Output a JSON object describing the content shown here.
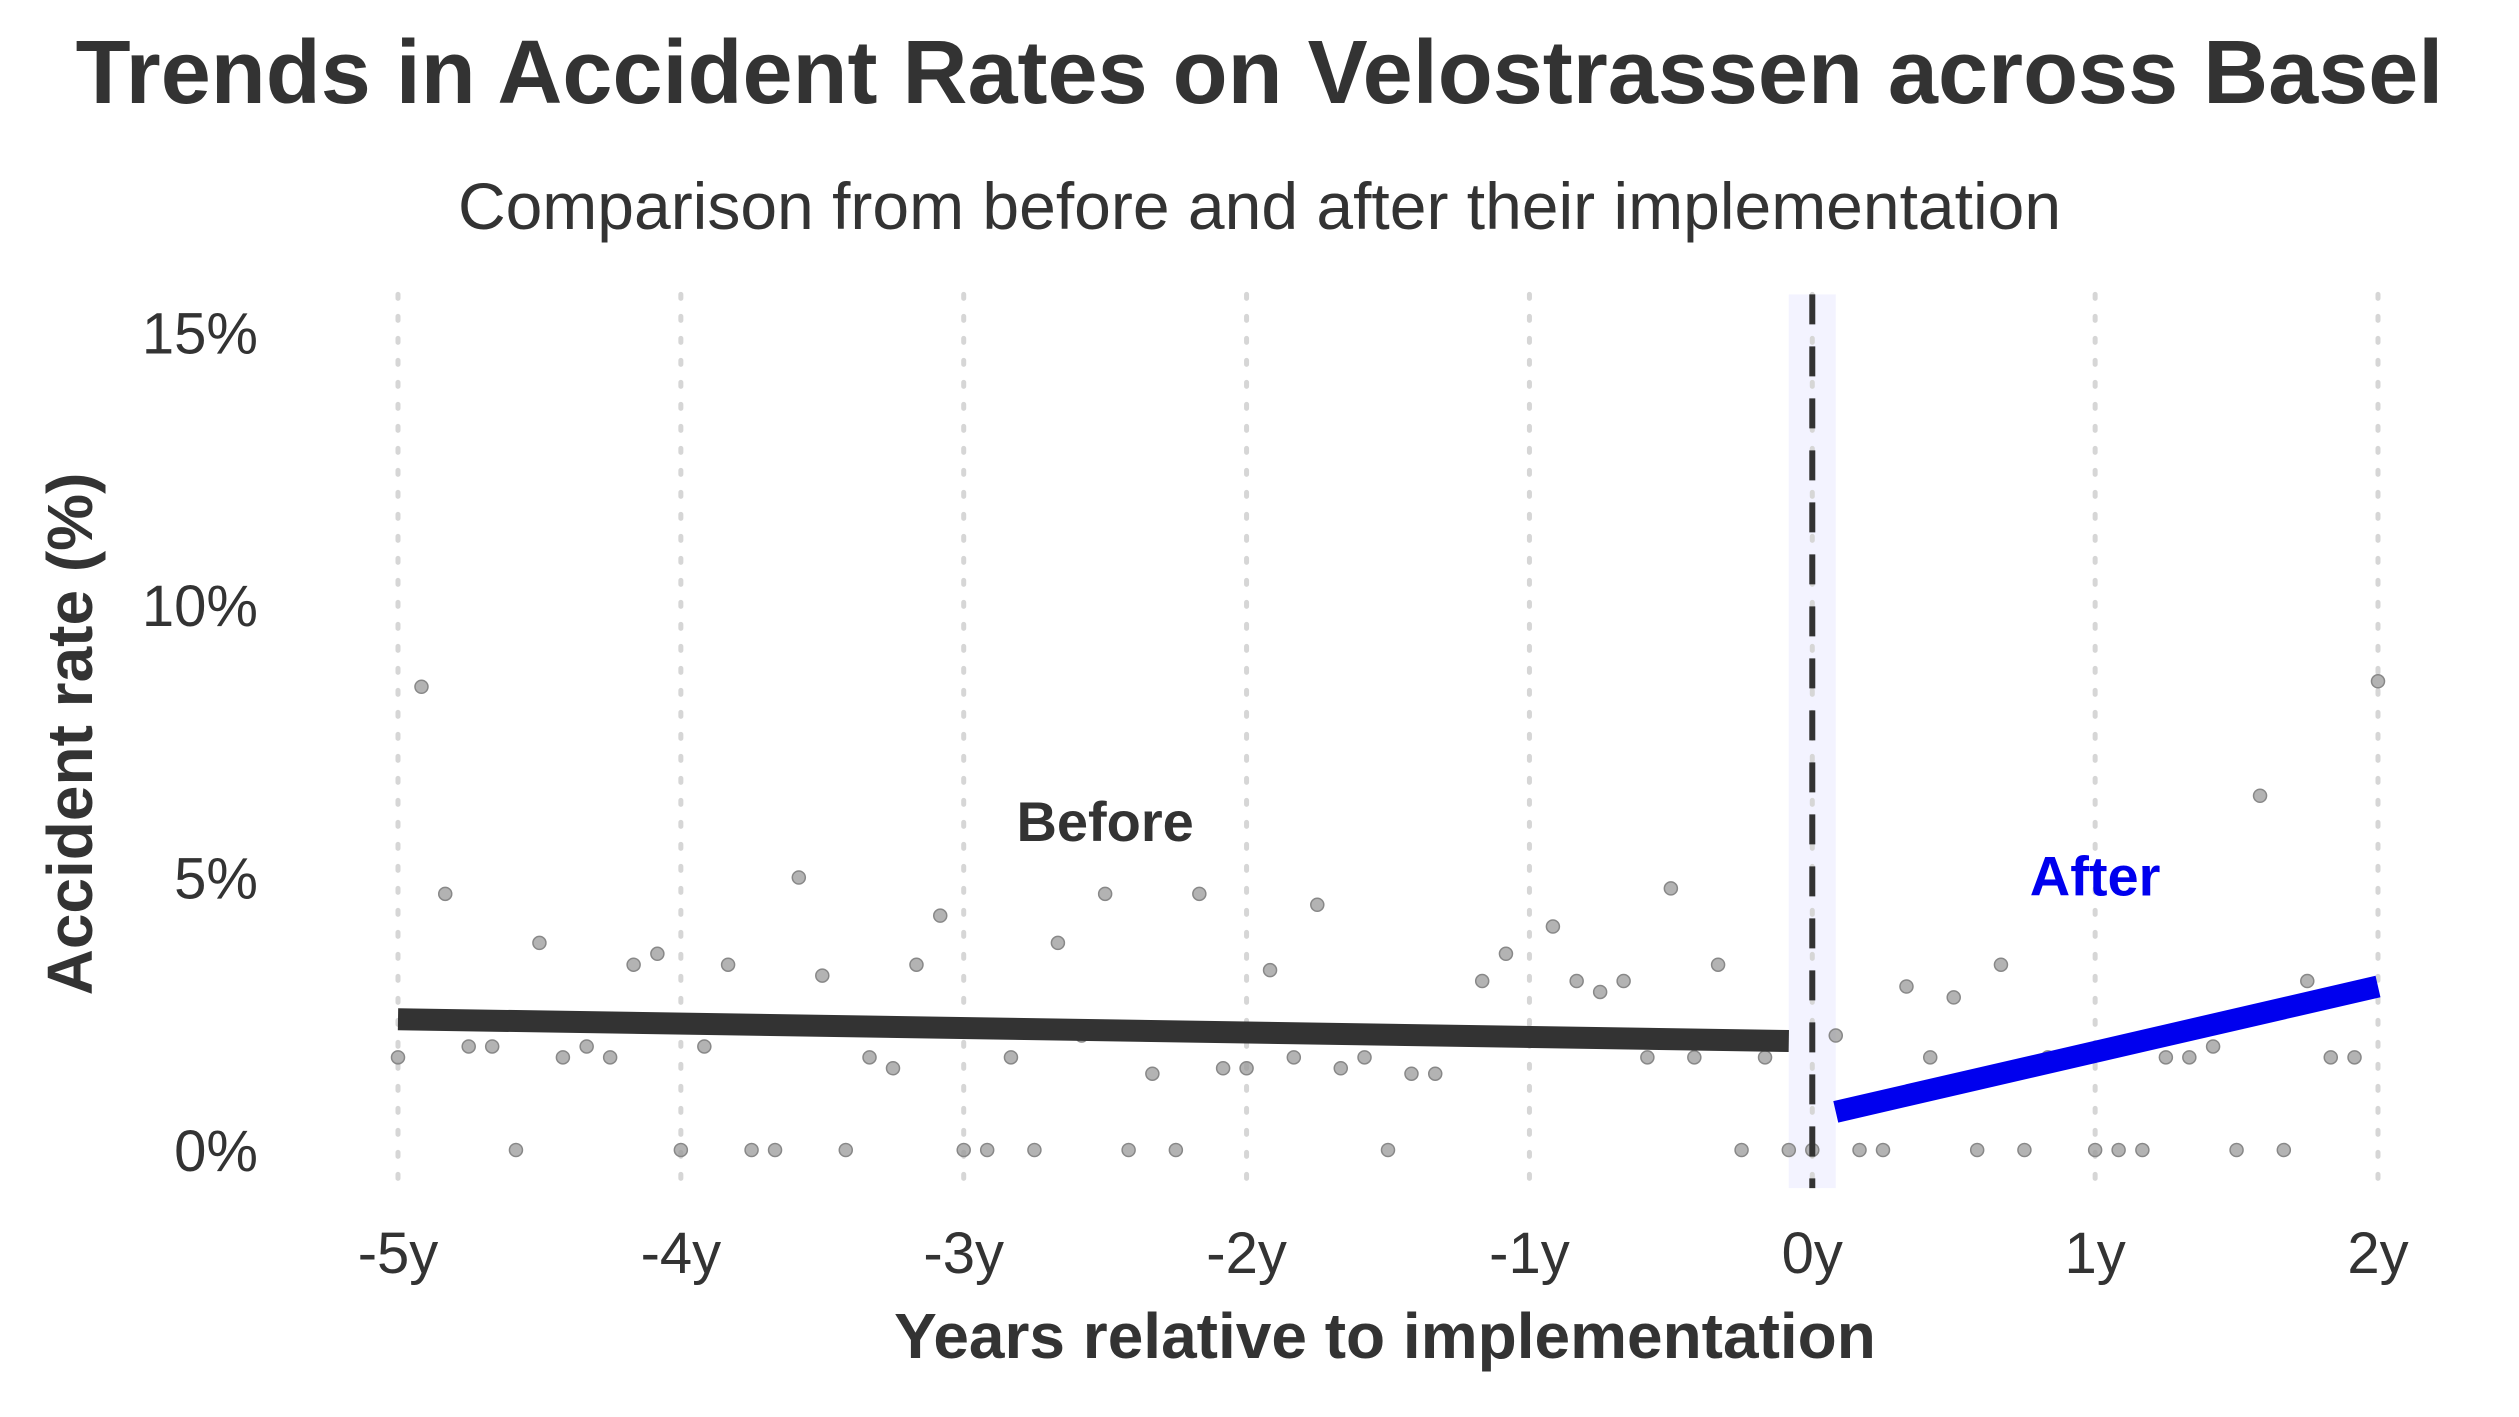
{
  "chart_data": {
    "type": "scatter",
    "title": "Trends in Accident Rates on Velostrassen across Basel",
    "subtitle": "Comparison from before and after their implementation",
    "xlabel": "Years relative to implementation",
    "ylabel": "Accident rate (%)",
    "xlim": [
      -5.08,
      2.08
    ],
    "ylim": [
      -0.7,
      15.7
    ],
    "x_ticks": [
      -5,
      -4,
      -3,
      -2,
      -1,
      0,
      1,
      2
    ],
    "x_tick_labels": [
      "-5y",
      "-4y",
      "-3y",
      "-2y",
      "-1y",
      "0y",
      "1y",
      "2y"
    ],
    "y_ticks": [
      0,
      5,
      10,
      15
    ],
    "y_tick_labels": [
      "0%",
      "5%",
      "10%",
      "15%"
    ],
    "grid": "vertical dotted",
    "implementation_marker": {
      "x": 0,
      "style": "dashed",
      "band_color": "#f3f3ff"
    },
    "points_color": "#999999",
    "series": [
      {
        "name": "Before",
        "color": "#333333",
        "trend": {
          "x": [
            -5.0,
            -0.083
          ],
          "y": [
            2.4,
            2.0
          ]
        },
        "label": {
          "text": "Before",
          "x": -2.5,
          "y": 6.0
        }
      },
      {
        "name": "After",
        "color": "#0000ee",
        "trend": {
          "x": [
            0.083,
            2.0
          ],
          "y": [
            0.7,
            3.0
          ]
        },
        "label": {
          "text": "After",
          "x": 1.0,
          "y": 5.0
        }
      }
    ],
    "points": [
      {
        "x": -5.0,
        "y": 1.7
      },
      {
        "x": -4.917,
        "y": 8.5
      },
      {
        "x": -4.833,
        "y": 4.7
      },
      {
        "x": -4.75,
        "y": 1.9
      },
      {
        "x": -4.667,
        "y": 1.9
      },
      {
        "x": -4.583,
        "y": 0.0
      },
      {
        "x": -4.5,
        "y": 3.8
      },
      {
        "x": -4.417,
        "y": 1.7
      },
      {
        "x": -4.333,
        "y": 1.9
      },
      {
        "x": -4.25,
        "y": 1.7
      },
      {
        "x": -4.167,
        "y": 3.4
      },
      {
        "x": -4.083,
        "y": 3.6
      },
      {
        "x": -4.0,
        "y": 0.0
      },
      {
        "x": -3.917,
        "y": 1.9
      },
      {
        "x": -3.833,
        "y": 3.4
      },
      {
        "x": -3.75,
        "y": 0.0
      },
      {
        "x": -3.667,
        "y": 0.0
      },
      {
        "x": -3.583,
        "y": 5.0
      },
      {
        "x": -3.5,
        "y": 3.2
      },
      {
        "x": -3.417,
        "y": 0.0
      },
      {
        "x": -3.333,
        "y": 1.7
      },
      {
        "x": -3.25,
        "y": 1.5
      },
      {
        "x": -3.167,
        "y": 3.4
      },
      {
        "x": -3.083,
        "y": 4.3
      },
      {
        "x": -3.0,
        "y": 0.0
      },
      {
        "x": -2.917,
        "y": 0.0
      },
      {
        "x": -2.833,
        "y": 1.7
      },
      {
        "x": -2.75,
        "y": 0.0
      },
      {
        "x": -2.667,
        "y": 3.8
      },
      {
        "x": -2.583,
        "y": 2.1
      },
      {
        "x": -2.5,
        "y": 4.7
      },
      {
        "x": -2.417,
        "y": 0.0
      },
      {
        "x": -2.333,
        "y": 1.4
      },
      {
        "x": -2.25,
        "y": 0.0
      },
      {
        "x": -2.167,
        "y": 4.7
      },
      {
        "x": -2.083,
        "y": 1.5
      },
      {
        "x": -2.0,
        "y": 1.5
      },
      {
        "x": -1.917,
        "y": 3.3
      },
      {
        "x": -1.833,
        "y": 1.7
      },
      {
        "x": -1.75,
        "y": 4.5
      },
      {
        "x": -1.667,
        "y": 1.5
      },
      {
        "x": -1.583,
        "y": 1.7
      },
      {
        "x": -1.5,
        "y": 0.0
      },
      {
        "x": -1.417,
        "y": 1.4
      },
      {
        "x": -1.333,
        "y": 1.4
      },
      {
        "x": -1.167,
        "y": 3.1
      },
      {
        "x": -1.083,
        "y": 3.6
      },
      {
        "x": -0.917,
        "y": 4.1
      },
      {
        "x": -0.833,
        "y": 3.1
      },
      {
        "x": -0.75,
        "y": 2.9
      },
      {
        "x": -0.667,
        "y": 3.1
      },
      {
        "x": -0.583,
        "y": 1.7
      },
      {
        "x": -0.5,
        "y": 4.8
      },
      {
        "x": -0.417,
        "y": 1.7
      },
      {
        "x": -0.333,
        "y": 3.4
      },
      {
        "x": -0.25,
        "y": 0.0
      },
      {
        "x": -0.167,
        "y": 1.7
      },
      {
        "x": -0.083,
        "y": 0.0
      },
      {
        "x": 0.0,
        "y": 0.0
      },
      {
        "x": 0.083,
        "y": 2.1
      },
      {
        "x": 0.167,
        "y": 0.0
      },
      {
        "x": 0.25,
        "y": 0.0
      },
      {
        "x": 0.333,
        "y": 3.0
      },
      {
        "x": 0.417,
        "y": 1.7
      },
      {
        "x": 0.5,
        "y": 2.8
      },
      {
        "x": 0.583,
        "y": 0.0
      },
      {
        "x": 0.667,
        "y": 3.4
      },
      {
        "x": 0.75,
        "y": 0.0
      },
      {
        "x": 0.833,
        "y": 1.7
      },
      {
        "x": 1.0,
        "y": 0.0
      },
      {
        "x": 1.083,
        "y": 0.0
      },
      {
        "x": 1.167,
        "y": 0.0
      },
      {
        "x": 1.25,
        "y": 1.7
      },
      {
        "x": 1.333,
        "y": 1.7
      },
      {
        "x": 1.417,
        "y": 1.9
      },
      {
        "x": 1.5,
        "y": 0.0
      },
      {
        "x": 1.583,
        "y": 6.5
      },
      {
        "x": 1.667,
        "y": 0.0
      },
      {
        "x": 1.75,
        "y": 3.1
      },
      {
        "x": 1.833,
        "y": 1.7
      },
      {
        "x": 1.917,
        "y": 1.7
      },
      {
        "x": 2.0,
        "y": 8.6
      }
    ]
  }
}
